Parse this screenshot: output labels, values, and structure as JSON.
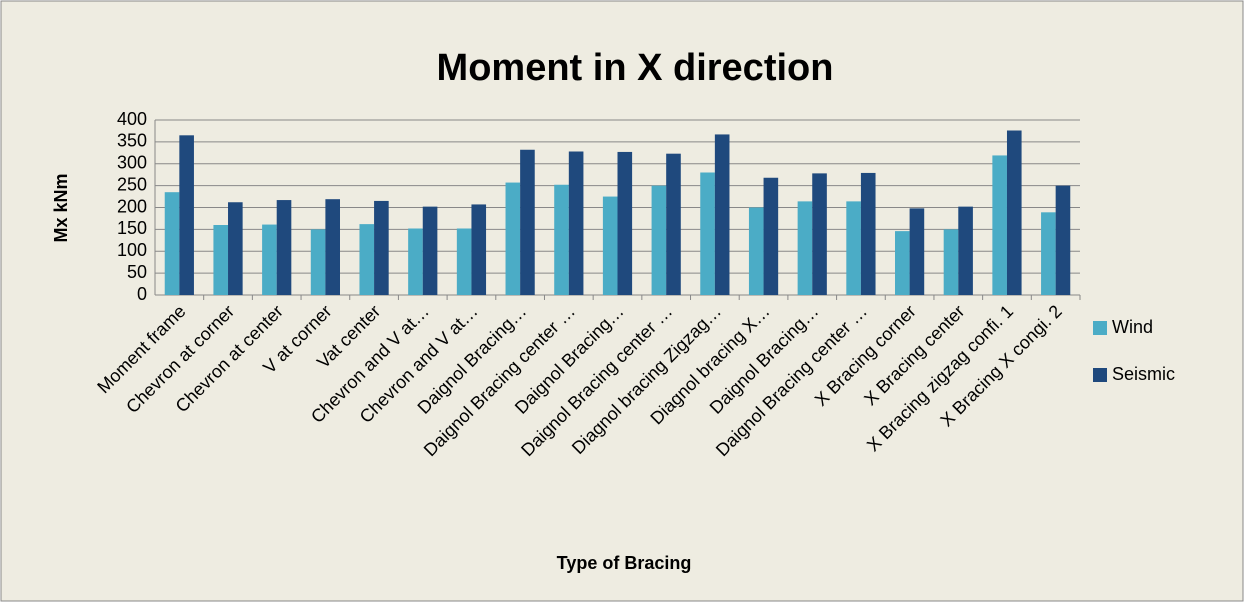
{
  "chart_data": {
    "type": "bar",
    "title": "Moment in X direction",
    "x_label": "Type of Bracing",
    "y_label": "Mx kNm",
    "categories": [
      "Moment frame",
      "Chevron at corner",
      "Chevron at center",
      "V at corner",
      "Vat center",
      "Chevron and V at…",
      "Chevron and V at…",
      "Daignol Bracing…",
      "Daignol Bracing center …",
      "Daignol Bracing…",
      "Daignol Bracing center …",
      "Diagnol bracing Zigzag…",
      "Diagnol bracing X…",
      "Daignol Bracing…",
      "Daignol Bracing center …",
      "X Bracing corner",
      "X Bracing center",
      "X Bracing zigzag confi. 1",
      "X Bracing X congi. 2"
    ],
    "series": [
      {
        "name": "Wind",
        "color": "#4bacc6",
        "values": [
          235,
          160,
          161,
          150,
          162,
          152,
          152,
          257,
          252,
          225,
          250,
          280,
          200,
          214,
          214,
          146,
          150,
          319,
          189
        ]
      },
      {
        "name": "Seismic",
        "color": "#1f497d",
        "values": [
          365,
          212,
          217,
          219,
          215,
          202,
          207,
          332,
          328,
          327,
          323,
          367,
          268,
          278,
          279,
          198,
          202,
          376,
          250
        ]
      }
    ],
    "ylim": [
      0,
      400
    ],
    "yticks": [
      0,
      50,
      100,
      150,
      200,
      250,
      300,
      350,
      400
    ],
    "grid": true,
    "legend": "right"
  }
}
